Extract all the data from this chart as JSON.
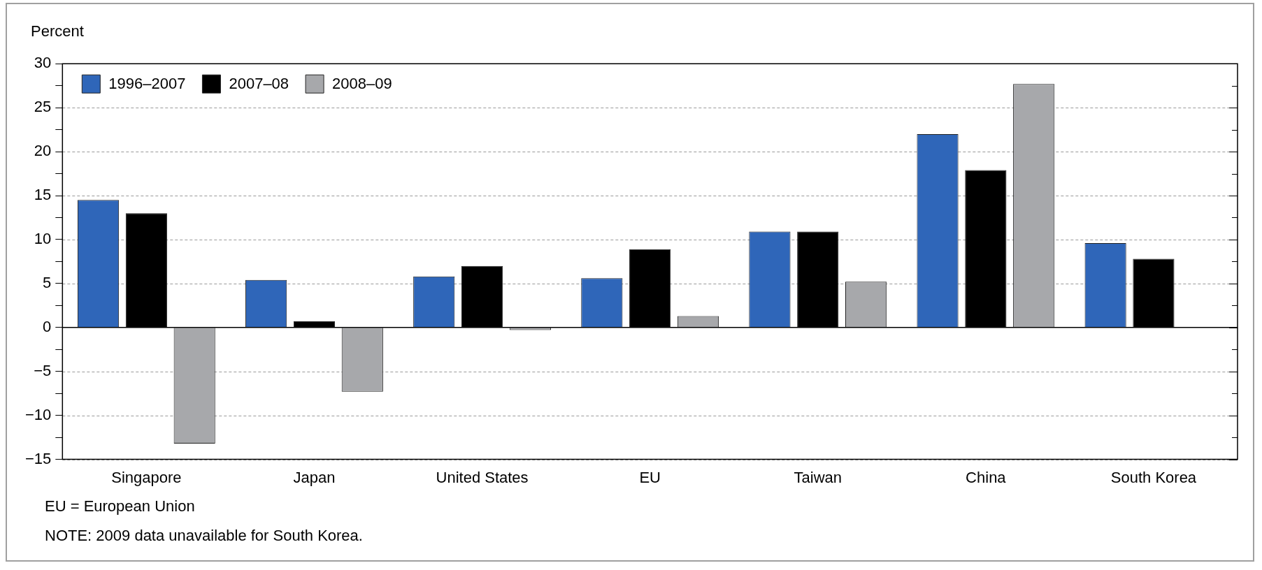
{
  "chart_data": {
    "type": "bar",
    "ylabel": "Percent",
    "categories": [
      "Singapore",
      "Japan",
      "United States",
      "EU",
      "Taiwan",
      "China",
      "South Korea"
    ],
    "series": [
      {
        "name": "1996–2007",
        "color": "#2f66b9",
        "values": [
          14.5,
          5.4,
          5.8,
          5.6,
          10.9,
          22.0,
          9.6
        ]
      },
      {
        "name": "2007–08",
        "color": "#000000",
        "values": [
          13.0,
          0.7,
          7.0,
          8.9,
          10.9,
          17.9,
          7.8
        ]
      },
      {
        "name": "2008–09",
        "color": "#a7a8ab",
        "values": [
          -13.2,
          -7.3,
          -0.3,
          1.3,
          5.2,
          27.7,
          null
        ]
      }
    ],
    "ylim": [
      -15,
      30
    ],
    "yticks": [
      -15,
      {
        "value": -12.5,
        "label": null
      },
      -10,
      {
        "value": -7.5,
        "label": null
      },
      -5,
      {
        "value": -2.5,
        "label": null
      },
      0,
      {
        "value": 2.5,
        "label": null
      },
      5,
      {
        "value": 7.5,
        "label": null
      },
      10,
      {
        "value": 12.5,
        "label": null
      },
      15,
      {
        "value": 17.5,
        "label": null
      },
      20,
      {
        "value": 22.5,
        "label": null
      },
      25,
      {
        "value": 27.5,
        "label": null
      },
      30
    ],
    "grid": "y",
    "legend": "top left",
    "annotations": [
      "EU = European Union",
      "NOTE: 2009 data unavailable for South Korea."
    ]
  }
}
